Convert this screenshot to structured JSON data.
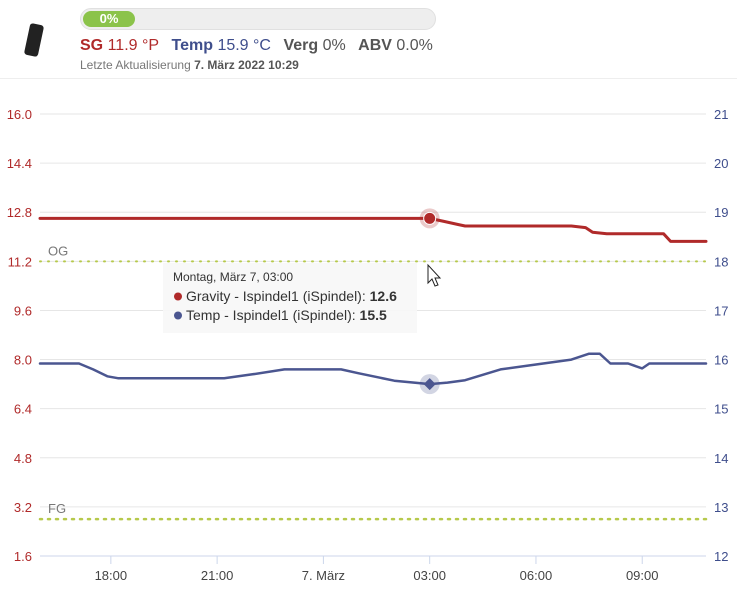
{
  "header": {
    "progress": {
      "label": "0%",
      "value": 0
    },
    "stats": {
      "sg_label": "SG",
      "sg_value": "11.9 °P",
      "temp_label": "Temp",
      "temp_value": "15.9 °C",
      "verg_label": "Verg",
      "verg_value": "0%",
      "abv_label": "ABV",
      "abv_value": "0.0%"
    },
    "updated_prefix": "Letzte Aktualisierung",
    "updated_value": "7. März 2022 10:29"
  },
  "colors": {
    "gravity": "#b02a2a",
    "temp": "#4b5690",
    "og_fg": "#b6c94b",
    "progress": "#8bc34a"
  },
  "chart_data": {
    "type": "line",
    "x_ticks": [
      "18:00",
      "21:00",
      "7. März",
      "03:00",
      "06:00",
      "09:00"
    ],
    "x_tick_hours": [
      18,
      21,
      24,
      27,
      30,
      33
    ],
    "x_range_hours": [
      16,
      34.8
    ],
    "y_left": {
      "ticks": [
        "16.0",
        "14.4",
        "12.8",
        "11.2",
        "9.6",
        "8.0",
        "6.4",
        "4.8",
        "3.2",
        "1.6"
      ],
      "range": [
        1.6,
        16.0
      ]
    },
    "y_right": {
      "ticks": [
        "21",
        "20",
        "19",
        "18",
        "17",
        "16",
        "15",
        "14",
        "13",
        "12"
      ],
      "range": [
        12,
        21
      ]
    },
    "reference_lines": [
      {
        "label": "OG",
        "value": 11.2,
        "axis": "left"
      },
      {
        "label": "FG",
        "value": 2.8,
        "axis": "left"
      }
    ],
    "series": [
      {
        "name": "Gravity - Ispindel1 (iSpindel)",
        "axis": "left",
        "color": "#b02a2a",
        "x": [
          16,
          27,
          27.4,
          27.8,
          28,
          29,
          30,
          31,
          31.4,
          31.6,
          32,
          33,
          33.6,
          33.8,
          34,
          34.8
        ],
        "y": [
          12.6,
          12.6,
          12.5,
          12.4,
          12.35,
          12.35,
          12.35,
          12.35,
          12.3,
          12.15,
          12.1,
          12.1,
          12.1,
          11.85,
          11.85,
          11.85
        ]
      },
      {
        "name": "Temp - Ispindel1 (iSpindel)",
        "axis": "right",
        "color": "#4b5690",
        "x": [
          16,
          17.1,
          17.5,
          17.9,
          18.2,
          20,
          21.2,
          22,
          22.9,
          24,
          24.5,
          25,
          26,
          27,
          27.5,
          28,
          29,
          30,
          31,
          31.5,
          31.8,
          32.1,
          32.4,
          32.6,
          33,
          33.2,
          33.4,
          34,
          34.8
        ],
        "y": [
          15.92,
          15.92,
          15.8,
          15.66,
          15.62,
          15.62,
          15.62,
          15.7,
          15.8,
          15.8,
          15.8,
          15.72,
          15.57,
          15.5,
          15.53,
          15.58,
          15.8,
          15.9,
          16.0,
          16.12,
          16.12,
          15.92,
          15.92,
          15.92,
          15.82,
          15.92,
          15.92,
          15.92,
          15.92
        ]
      }
    ],
    "tooltip": {
      "title": "Montag, März 7, 03:00",
      "rows": [
        {
          "label": "Gravity - Ispindel1 (iSpindel):",
          "value": "12.6"
        },
        {
          "label": "Temp - Ispindel1 (iSpindel):",
          "value": "15.5"
        }
      ]
    },
    "hover_x": 27
  }
}
